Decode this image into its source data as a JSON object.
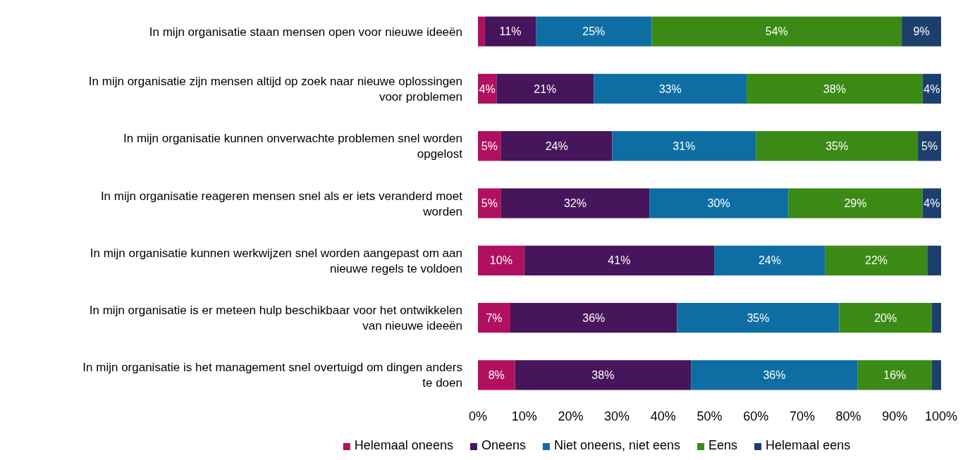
{
  "chart_data": {
    "type": "bar",
    "orientation": "horizontal",
    "stacked": true,
    "categories": [
      "In mijn organisatie staan mensen open voor nieuwe ideeën",
      "In mijn organisatie zijn mensen altijd op zoek naar nieuwe oplossingen voor problemen",
      "In mijn organisatie kunnen onverwachte problemen snel worden opgelost",
      "In mijn organisatie reageren mensen snel als er iets veranderd moet worden",
      "In mijn organisatie kunnen werkwijzen snel worden aangepast om aan nieuwe regels te voldoen",
      "In mijn organisatie is er meteen hulp beschikbaar voor het ontwikkelen van nieuwe ideeën",
      "In mijn organisatie is het management snel overtuigd om dingen anders te doen"
    ],
    "series": [
      {
        "name": "Helemaal oneens",
        "color": "#b0105f",
        "values": [
          1.5,
          4,
          5,
          5,
          10,
          7,
          8
        ],
        "value_labels": [
          null,
          "4%",
          "5%",
          "5%",
          "10%",
          "7%",
          "8%"
        ]
      },
      {
        "name": "Oneens",
        "color": "#46155b",
        "values": [
          11,
          21,
          24,
          32,
          41,
          36,
          38
        ],
        "value_labels": [
          "11%",
          "21%",
          "24%",
          "32%",
          "41%",
          "36%",
          "38%"
        ]
      },
      {
        "name": "Niet oneens, niet eens",
        "color": "#0e6ea3",
        "values": [
          25,
          33,
          31,
          30,
          24,
          35,
          36
        ],
        "value_labels": [
          "25%",
          "33%",
          "31%",
          "30%",
          "24%",
          "35%",
          "36%"
        ]
      },
      {
        "name": "Eens",
        "color": "#3b8a15",
        "values": [
          54,
          38,
          35,
          29,
          22,
          20,
          16
        ],
        "value_labels": [
          "54%",
          "38%",
          "35%",
          "29%",
          "22%",
          "20%",
          "16%"
        ]
      },
      {
        "name": "Helemaal eens",
        "color": "#1d3f6e",
        "values": [
          8.5,
          4,
          5,
          4,
          3,
          2,
          2
        ],
        "value_labels": [
          "9%",
          "4%",
          "5%",
          "4%",
          null,
          null,
          null
        ]
      }
    ],
    "xlim": [
      0,
      100
    ],
    "xticks": [
      {
        "value": 0,
        "label": "0%"
      },
      {
        "value": 10,
        "label": "10%"
      },
      {
        "value": 20,
        "label": "20%"
      },
      {
        "value": 30,
        "label": "30%"
      },
      {
        "value": 40,
        "label": "40%"
      },
      {
        "value": 50,
        "label": "50%"
      },
      {
        "value": 60,
        "label": "60%"
      },
      {
        "value": 70,
        "label": "70%"
      },
      {
        "value": 80,
        "label": "80%"
      },
      {
        "value": 90,
        "label": "90%"
      },
      {
        "value": 100,
        "label": "100%"
      }
    ],
    "grid": false,
    "legend": "bottom"
  }
}
